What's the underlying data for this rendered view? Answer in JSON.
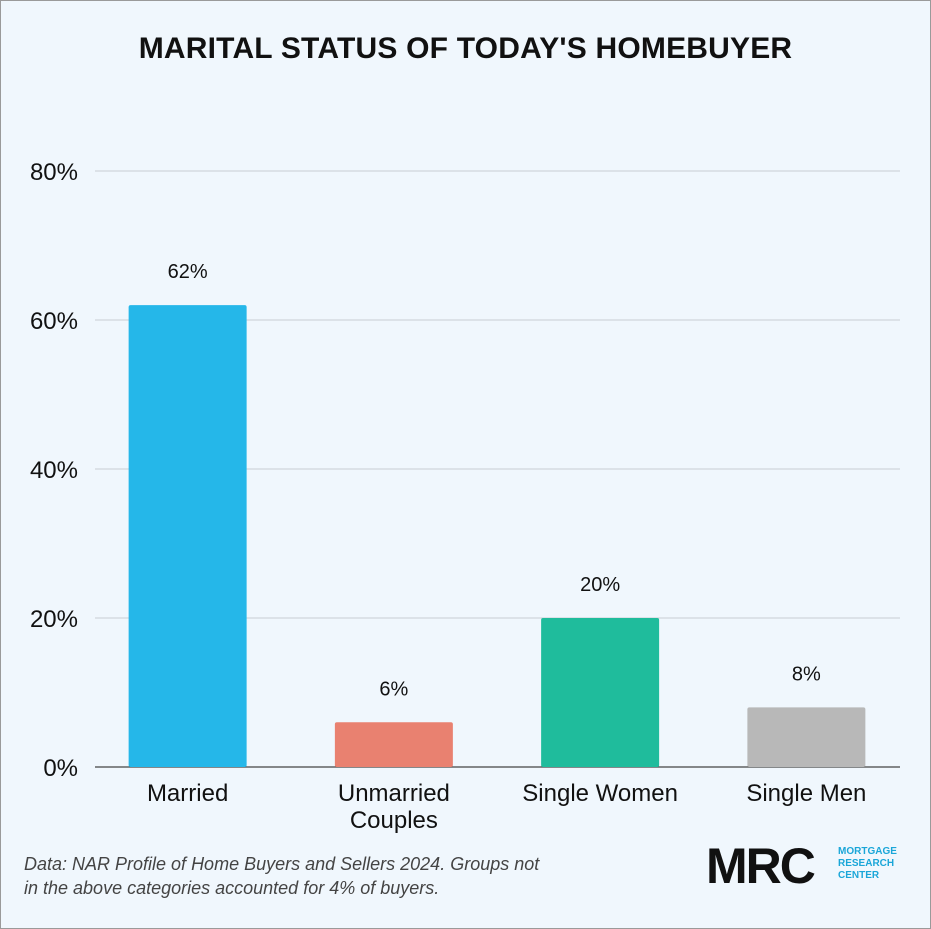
{
  "title": "MARITAL STATUS OF TODAY'S HOMEBUYER",
  "note": {
    "line1": "Data: NAR Profile of Home Buyers and Sellers 2024. Groups not",
    "line2": "in the above categories accounted for 4% of buyers."
  },
  "logo": {
    "mark": "MRC",
    "words": [
      "MORTGAGE",
      "RESEARCH",
      "CENTER"
    ],
    "color": "#1aa6d8"
  },
  "chart_data": {
    "type": "bar",
    "title": "MARITAL STATUS OF TODAY'S HOMEBUYER",
    "categories": [
      [
        "Married"
      ],
      [
        "Unmarried",
        "Couples"
      ],
      [
        "Single Women"
      ],
      [
        "Single Men"
      ]
    ],
    "values": [
      62,
      6,
      20,
      8
    ],
    "value_labels": [
      "62%",
      "6%",
      "20%",
      "8%"
    ],
    "colors": [
      "#25b7e9",
      "#e98170",
      "#1fbc9c",
      "#b8b8b8"
    ],
    "ylim": [
      0,
      80
    ],
    "yticks": [
      0,
      20,
      40,
      60,
      80
    ],
    "ytick_labels": [
      "0%",
      "20%",
      "40%",
      "60%",
      "80%"
    ],
    "grid": true,
    "xlabel": "",
    "ylabel": ""
  }
}
